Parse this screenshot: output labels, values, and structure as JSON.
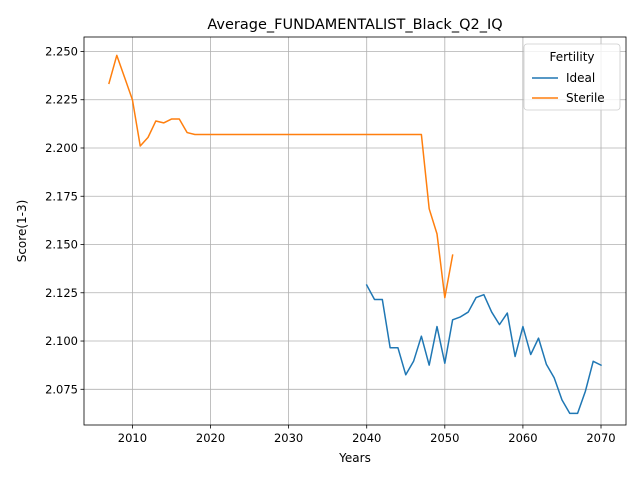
{
  "chart_data": {
    "type": "line",
    "title": "Average_FUNDAMENTALIST_Black_Q2_IQ",
    "xlabel": "Years",
    "ylabel": "Score(1-3)",
    "xlim": [
      2003.8,
      2073.2
    ],
    "ylim": [
      2.0565,
      2.2575
    ],
    "xticks": [
      2010,
      2020,
      2030,
      2040,
      2050,
      2060,
      2070
    ],
    "yticks": [
      2.075,
      2.1,
      2.125,
      2.15,
      2.175,
      2.2,
      2.225,
      2.25
    ],
    "ytick_labels": [
      "2.075",
      "2.100",
      "2.125",
      "2.150",
      "2.175",
      "2.200",
      "2.225",
      "2.250"
    ],
    "grid": true,
    "legend": {
      "title": "Fertility",
      "placement": "upper right"
    },
    "series": [
      {
        "name": "Ideal",
        "color": "#1f77b4",
        "x": [
          2040,
          2041,
          2042,
          2043,
          2044,
          2045,
          2046,
          2047,
          2048,
          2049,
          2050,
          2051,
          2052,
          2053,
          2054,
          2055,
          2056,
          2057,
          2058,
          2059,
          2060,
          2061,
          2062,
          2063,
          2064,
          2065,
          2066,
          2067,
          2068,
          2069,
          2070
        ],
        "values": [
          2.129,
          2.1215,
          2.1215,
          2.0965,
          2.0965,
          2.0825,
          2.0895,
          2.1025,
          2.0875,
          2.1075,
          2.0885,
          2.111,
          2.1125,
          2.115,
          2.1225,
          2.124,
          2.115,
          2.1085,
          2.1145,
          2.092,
          2.1075,
          2.093,
          2.1015,
          2.088,
          2.081,
          2.0695,
          2.0625,
          2.0625,
          2.074,
          2.0895,
          2.0875
        ]
      },
      {
        "name": "Sterile",
        "color": "#ff7f0e",
        "x": [
          2007,
          2008,
          2009,
          2010,
          2011,
          2012,
          2013,
          2014,
          2015,
          2016,
          2017,
          2018,
          2019,
          2020,
          2021,
          2022,
          2023,
          2024,
          2025,
          2026,
          2027,
          2028,
          2029,
          2030,
          2031,
          2032,
          2033,
          2034,
          2035,
          2036,
          2037,
          2038,
          2039,
          2040,
          2041,
          2042,
          2043,
          2044,
          2045,
          2046,
          2047,
          2048,
          2049,
          2050,
          2051
        ],
        "values": [
          2.2335,
          2.248,
          2.2365,
          2.225,
          2.201,
          2.2055,
          2.214,
          2.213,
          2.215,
          2.215,
          2.208,
          2.207,
          2.207,
          2.207,
          2.207,
          2.207,
          2.207,
          2.207,
          2.207,
          2.207,
          2.207,
          2.207,
          2.207,
          2.207,
          2.207,
          2.207,
          2.207,
          2.207,
          2.207,
          2.207,
          2.207,
          2.207,
          2.207,
          2.207,
          2.207,
          2.207,
          2.207,
          2.207,
          2.207,
          2.207,
          2.207,
          2.1685,
          2.1555,
          2.1225,
          2.1445
        ]
      }
    ]
  }
}
